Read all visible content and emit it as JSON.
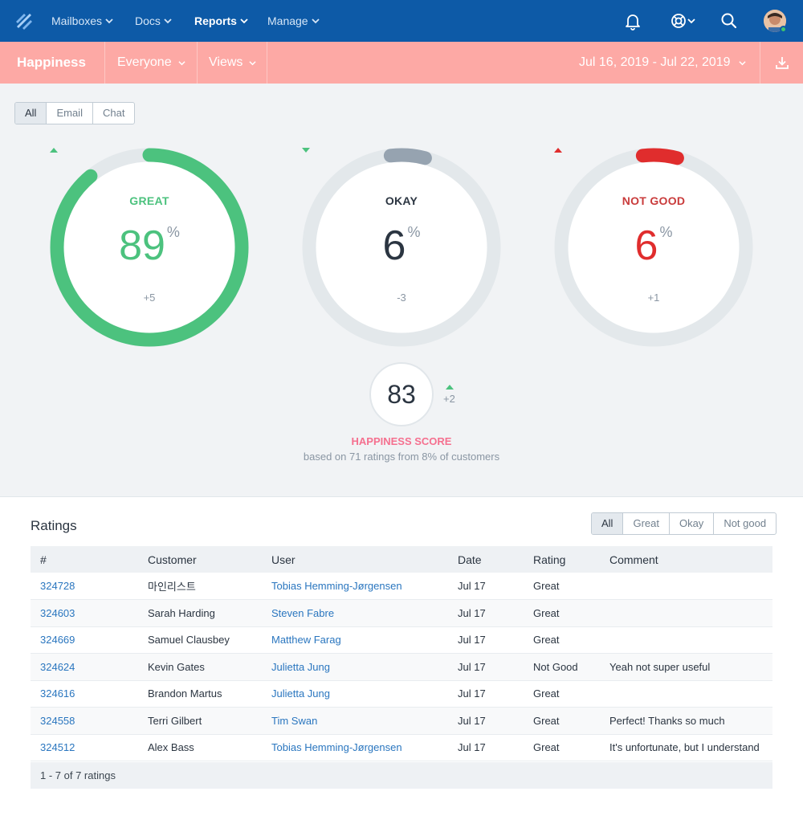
{
  "nav": {
    "items": [
      {
        "label": "Mailboxes"
      },
      {
        "label": "Docs"
      },
      {
        "label": "Reports"
      },
      {
        "label": "Manage"
      }
    ]
  },
  "subbar": {
    "title": "Happiness",
    "filter_everyone": "Everyone",
    "filter_views": "Views",
    "date_range": "Jul 16, 2019 - Jul 22, 2019"
  },
  "channel_filter": [
    "All",
    "Email",
    "Chat"
  ],
  "gauges": [
    {
      "label": "GREAT",
      "value": "89",
      "unit": "%",
      "delta": "+5",
      "fraction": 0.89,
      "color": "#4cc27e",
      "value_color": "#4cc27e",
      "label_color": "#4cc27e",
      "trend": "up"
    },
    {
      "label": "OKAY",
      "value": "6",
      "unit": "%",
      "delta": "-3",
      "fraction": 0.06,
      "color": "#96a3b0",
      "value_color": "#2b3541",
      "label_color": "#2b3541",
      "trend": "down"
    },
    {
      "label": "NOT GOOD",
      "value": "6",
      "unit": "%",
      "delta": "+1",
      "fraction": 0.06,
      "color": "#e02d2d",
      "value_color": "#e02d2d",
      "label_color": "#c93b3b",
      "trend": "up"
    }
  ],
  "score": {
    "value": "83",
    "delta": "+2",
    "label": "HAPPINESS SCORE",
    "sub": "based on 71 ratings from 8% of customers"
  },
  "ratings": {
    "title": "Ratings",
    "filters": [
      "All",
      "Great",
      "Okay",
      "Not good"
    ],
    "columns": [
      "#",
      "Customer",
      "User",
      "Date",
      "Rating",
      "Comment"
    ],
    "rows": [
      {
        "id": "324728",
        "customer": "마인리스트",
        "user": "Tobias Hemming-Jørgensen",
        "date": "Jul 17",
        "rating": "Great",
        "comment": ""
      },
      {
        "id": "324603",
        "customer": "Sarah Harding",
        "user": "Steven Fabre",
        "date": "Jul 17",
        "rating": "Great",
        "comment": ""
      },
      {
        "id": "324669",
        "customer": "Samuel Clausbey",
        "user": "Matthew Farag",
        "date": "Jul 17",
        "rating": "Great",
        "comment": ""
      },
      {
        "id": "324624",
        "customer": "Kevin Gates",
        "user": "Julietta Jung",
        "date": "Jul 17",
        "rating": "Not Good",
        "comment": "Yeah not super useful"
      },
      {
        "id": "324616",
        "customer": "Brandon Martus",
        "user": "Julietta Jung",
        "date": "Jul 17",
        "rating": "Great",
        "comment": ""
      },
      {
        "id": "324558",
        "customer": "Terri Gilbert",
        "user": "Tim Swan",
        "date": "Jul 17",
        "rating": "Great",
        "comment": "Perfect! Thanks so much"
      },
      {
        "id": "324512",
        "customer": "Alex Bass",
        "user": "Tobias Hemming-Jørgensen",
        "date": "Jul 17",
        "rating": "Great",
        "comment": "It's unfortunate, but I understand"
      }
    ],
    "footer": "1 - 7 of 7 ratings"
  }
}
